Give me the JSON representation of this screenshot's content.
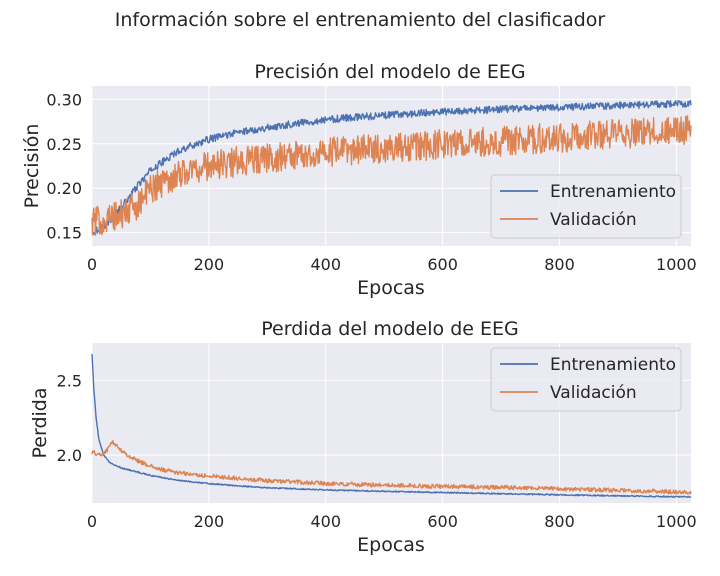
{
  "figure": {
    "suptitle": "Información sobre el entrenamiento del clasificador"
  },
  "colors": {
    "train": "#4c72b0",
    "val": "#dd8452",
    "axes_bg": "#eaeaf2",
    "grid": "#ffffff",
    "text": "#262626"
  },
  "chart_data": [
    {
      "type": "line",
      "title": "Precisión del modelo de EEG",
      "xlabel": "Epocas",
      "ylabel": "Precisión",
      "xlim": [
        0,
        1025
      ],
      "ylim": [
        0.135,
        0.315
      ],
      "xticks": [
        0,
        200,
        400,
        600,
        800,
        1000
      ],
      "yticks": [
        0.15,
        0.2,
        0.25,
        0.3
      ],
      "ytick_labels": [
        "0.15",
        "0.20",
        "0.25",
        "0.30"
      ],
      "grid": true,
      "legend_position": "lower-right",
      "series": [
        {
          "name": "Entrenamiento",
          "color": "#4c72b0",
          "points": [
            [
              0,
              0.15
            ],
            [
              25,
              0.16
            ],
            [
              50,
              0.178
            ],
            [
              75,
              0.2
            ],
            [
              100,
              0.22
            ],
            [
              150,
              0.243
            ],
            [
              200,
              0.255
            ],
            [
              250,
              0.263
            ],
            [
              300,
              0.268
            ],
            [
              350,
              0.273
            ],
            [
              400,
              0.277
            ],
            [
              450,
              0.28
            ],
            [
              500,
              0.282
            ],
            [
              550,
              0.284
            ],
            [
              600,
              0.286
            ],
            [
              650,
              0.287
            ],
            [
              700,
              0.289
            ],
            [
              750,
              0.29
            ],
            [
              800,
              0.291
            ],
            [
              850,
              0.292
            ],
            [
              900,
              0.293
            ],
            [
              950,
              0.294
            ],
            [
              1000,
              0.295
            ],
            [
              1025,
              0.295
            ]
          ],
          "noise": 0.004
        },
        {
          "name": "Validación",
          "color": "#dd8452",
          "points": [
            [
              0,
              0.162
            ],
            [
              25,
              0.165
            ],
            [
              50,
              0.17
            ],
            [
              75,
              0.18
            ],
            [
              100,
              0.2
            ],
            [
              150,
              0.217
            ],
            [
              200,
              0.225
            ],
            [
              250,
              0.23
            ],
            [
              300,
              0.234
            ],
            [
              350,
              0.237
            ],
            [
              400,
              0.24
            ],
            [
              450,
              0.243
            ],
            [
              500,
              0.245
            ],
            [
              550,
              0.247
            ],
            [
              600,
              0.249
            ],
            [
              650,
              0.251
            ],
            [
              700,
              0.253
            ],
            [
              750,
              0.255
            ],
            [
              800,
              0.257
            ],
            [
              850,
              0.259
            ],
            [
              900,
              0.261
            ],
            [
              950,
              0.263
            ],
            [
              1000,
              0.265
            ],
            [
              1025,
              0.266
            ]
          ],
          "noise": 0.017
        }
      ]
    },
    {
      "type": "line",
      "title": "Perdida del modelo de EEG",
      "xlabel": "Epocas",
      "ylabel": "Perdida",
      "xlim": [
        0,
        1025
      ],
      "ylim": [
        1.68,
        2.75
      ],
      "xticks": [
        0,
        200,
        400,
        600,
        800,
        1000
      ],
      "yticks": [
        2.0,
        2.5
      ],
      "ytick_labels": [
        "2.0",
        "2.5"
      ],
      "grid": true,
      "legend_position": "upper-right",
      "series": [
        {
          "name": "Entrenamiento",
          "color": "#4c72b0",
          "points": [
            [
              0,
              2.68
            ],
            [
              3,
              2.45
            ],
            [
              7,
              2.25
            ],
            [
              12,
              2.1
            ],
            [
              20,
              2.0
            ],
            [
              30,
              1.95
            ],
            [
              50,
              1.915
            ],
            [
              75,
              1.89
            ],
            [
              100,
              1.865
            ],
            [
              150,
              1.83
            ],
            [
              200,
              1.81
            ],
            [
              250,
              1.795
            ],
            [
              300,
              1.782
            ],
            [
              400,
              1.768
            ],
            [
              500,
              1.758
            ],
            [
              600,
              1.75
            ],
            [
              700,
              1.742
            ],
            [
              800,
              1.735
            ],
            [
              900,
              1.728
            ],
            [
              1000,
              1.722
            ],
            [
              1025,
              1.72
            ]
          ],
          "noise": 0.004
        },
        {
          "name": "Validación",
          "color": "#dd8452",
          "points": [
            [
              0,
              2.02
            ],
            [
              15,
              2.0
            ],
            [
              25,
              2.03
            ],
            [
              35,
              2.09
            ],
            [
              45,
              2.05
            ],
            [
              60,
              2.0
            ],
            [
              80,
              1.96
            ],
            [
              110,
              1.91
            ],
            [
              150,
              1.88
            ],
            [
              200,
              1.86
            ],
            [
              300,
              1.83
            ],
            [
              400,
              1.81
            ],
            [
              500,
              1.8
            ],
            [
              600,
              1.79
            ],
            [
              700,
              1.785
            ],
            [
              800,
              1.775
            ],
            [
              900,
              1.765
            ],
            [
              1000,
              1.755
            ],
            [
              1025,
              1.752
            ]
          ],
          "noise": 0.014
        }
      ]
    }
  ]
}
